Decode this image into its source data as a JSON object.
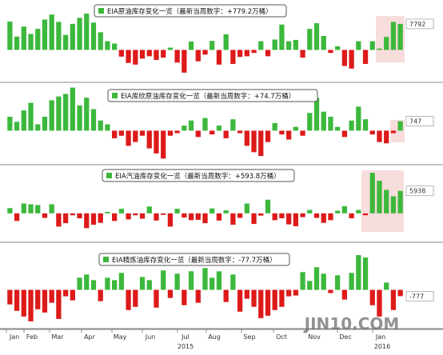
{
  "chart_data": [
    {
      "type": "bar",
      "title": "EIA原油库存变化一览（最新当周数字：+779.2万桶）",
      "color_up": "#3cb83c",
      "color_down": "#dd1a1a",
      "ylim": [
        -9000,
        14000
      ],
      "values": [
        8500,
        4000,
        7000,
        4800,
        6300,
        9100,
        10600,
        8400,
        4500,
        7800,
        9600,
        10900,
        8200,
        5300,
        2600,
        1900,
        -2000,
        -3900,
        -4400,
        -2600,
        -1900,
        -3000,
        -2300,
        700,
        -3800,
        -6800,
        2500,
        -3400,
        -1400,
        2700,
        -4400,
        4700,
        -4200,
        -2100,
        -1900,
        -900,
        2600,
        -1900,
        3100,
        7600,
        2600,
        3000,
        -2300,
        6300,
        8000,
        4200,
        -900,
        1100,
        -4800,
        -5600,
        2600,
        -4200,
        2600,
        400,
        3900,
        8400,
        7792
      ]
    },
    {
      "type": "bar",
      "title": "EIA库欣原油库存变化一览（最新当周数字：+74.7万桶）",
      "color_up": "#3cb83c",
      "color_down": "#dd1a1a",
      "ylim": [
        -2500,
        3500
      ],
      "values": [
        1100,
        700,
        1600,
        2200,
        500,
        1100,
        2400,
        2700,
        2900,
        3400,
        2000,
        2600,
        1700,
        800,
        500,
        -600,
        -400,
        -1200,
        -900,
        -400,
        -1400,
        -1800,
        -2200,
        -400,
        -200,
        400,
        800,
        -500,
        1000,
        -300,
        400,
        -600,
        900,
        -200,
        -1200,
        -1700,
        -2000,
        -900,
        600,
        -300,
        -700,
        300,
        -400,
        1400,
        2600,
        1500,
        1100,
        300,
        -500,
        800,
        1900,
        900,
        -300,
        -900,
        -1000,
        -200,
        747
      ]
    },
    {
      "type": "bar",
      "title": "EIA汽油库存变化一览（最新当周数字：+593.8万桶）",
      "color_up": "#3cb83c",
      "color_down": "#dd1a1a",
      "ylim": [
        -7000,
        12000
      ],
      "values": [
        1400,
        -2000,
        2600,
        2400,
        2200,
        -1200,
        2400,
        -3500,
        -2600,
        -500,
        -1300,
        -3900,
        -3000,
        -2500,
        400,
        -2000,
        1200,
        -1600,
        -500,
        -1400,
        1800,
        -1900,
        -400,
        -3500,
        1200,
        -1100,
        -1800,
        -1700,
        -2600,
        1300,
        -1900,
        800,
        -3000,
        -1200,
        2600,
        -2800,
        -600,
        3600,
        -1800,
        -1300,
        -2900,
        -3400,
        -1000,
        900,
        -1200,
        -2500,
        -1800,
        700,
        1900,
        -1300,
        900,
        -500,
        10700,
        8600,
        6200,
        4500,
        5938
      ]
    },
    {
      "type": "bar",
      "title": "EIA精炼油库存变化一览（最新当周数字：-77.7万桶）",
      "color_up": "#3cb83c",
      "color_down": "#dd1a1a",
      "ylim": [
        -4500,
        5000
      ],
      "values": [
        -1800,
        -2600,
        -3300,
        -3900,
        -2400,
        -2800,
        -1600,
        -3600,
        -800,
        -1300,
        1500,
        1900,
        1200,
        -1400,
        1500,
        1200,
        2100,
        -2500,
        -2100,
        1600,
        1200,
        -2200,
        2400,
        -1000,
        2000,
        -1900,
        2300,
        -1600,
        2700,
        1500,
        2300,
        -1500,
        1900,
        -2700,
        -1100,
        -2100,
        -3500,
        -3200,
        -2500,
        -2100,
        -800,
        -700,
        2200,
        1100,
        2800,
        2000,
        -400,
        1800,
        -1200,
        2100,
        4300,
        4000,
        -1900,
        -3300,
        900,
        -2500,
        -777
      ]
    }
  ],
  "x_axis": {
    "months": [
      "Jan",
      "Feb",
      "Mar",
      "Apr",
      "May",
      "Jun",
      "Jul",
      "Aug",
      "Sep",
      "Oct",
      "Nov",
      "Dec",
      "Jan"
    ],
    "years": [
      "2015",
      "2016"
    ]
  },
  "watermark": "JIN10.COM"
}
